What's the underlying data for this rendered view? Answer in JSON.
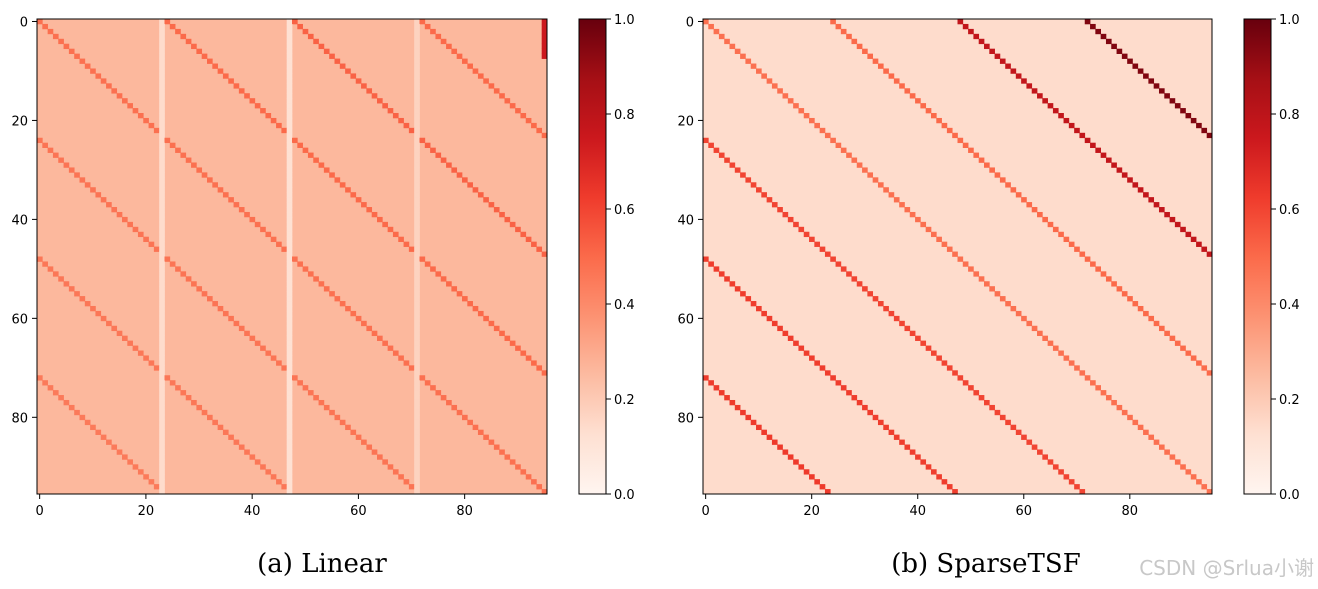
{
  "chart_data": [
    {
      "type": "heatmap",
      "caption": "(a) Linear",
      "size": 96,
      "colormap": "Reds",
      "colorbar": {
        "range": [
          0.0,
          1.0
        ],
        "ticks": [
          "0.0",
          "0.2",
          "0.4",
          "0.6",
          "0.8",
          "1.0"
        ]
      },
      "x_ticks": [
        "0",
        "20",
        "40",
        "60",
        "80"
      ],
      "y_ticks": [
        "0",
        "20",
        "40",
        "60",
        "80"
      ],
      "model": {
        "background": 0.26,
        "stripes": [
          {
            "offset": 0,
            "value": 0.48
          },
          {
            "offset": 24,
            "value": 0.5
          },
          {
            "offset": 48,
            "value": 0.52
          },
          {
            "offset": 72,
            "value": 0.5
          },
          {
            "offset": -24,
            "value": 0.47
          },
          {
            "offset": -48,
            "value": 0.46
          },
          {
            "offset": -72,
            "value": 0.45
          }
        ],
        "light_columns": [
          {
            "col": 23,
            "value": 0.14
          },
          {
            "col": 47,
            "value": 0.12
          },
          {
            "col": 71,
            "value": 0.17
          }
        ],
        "dark_last_column": {
          "col": 95,
          "value": 0.75
        }
      }
    },
    {
      "type": "heatmap",
      "caption": "(b) SparseTSF",
      "size": 96,
      "colormap": "Reds",
      "colorbar": {
        "range": [
          0.0,
          1.0
        ],
        "ticks": [
          "0.0",
          "0.2",
          "0.4",
          "0.6",
          "0.8",
          "1.0"
        ]
      },
      "x_ticks": [
        "0",
        "20",
        "40",
        "60",
        "80"
      ],
      "y_ticks": [
        "0",
        "20",
        "40",
        "60",
        "80"
      ],
      "model": {
        "background": 0.14,
        "stripes": [
          {
            "offset": 0,
            "value": 0.48
          },
          {
            "offset": 24,
            "value": 0.5
          },
          {
            "offset": 48,
            "value": 0.78
          },
          {
            "offset": 72,
            "value": 0.95
          },
          {
            "offset": -24,
            "value": 0.6
          },
          {
            "offset": -48,
            "value": 0.62
          },
          {
            "offset": -72,
            "value": 0.63
          }
        ],
        "light_columns": [],
        "dark_last_column": null
      }
    }
  ],
  "watermark": "CSDN @Srlua小谢"
}
